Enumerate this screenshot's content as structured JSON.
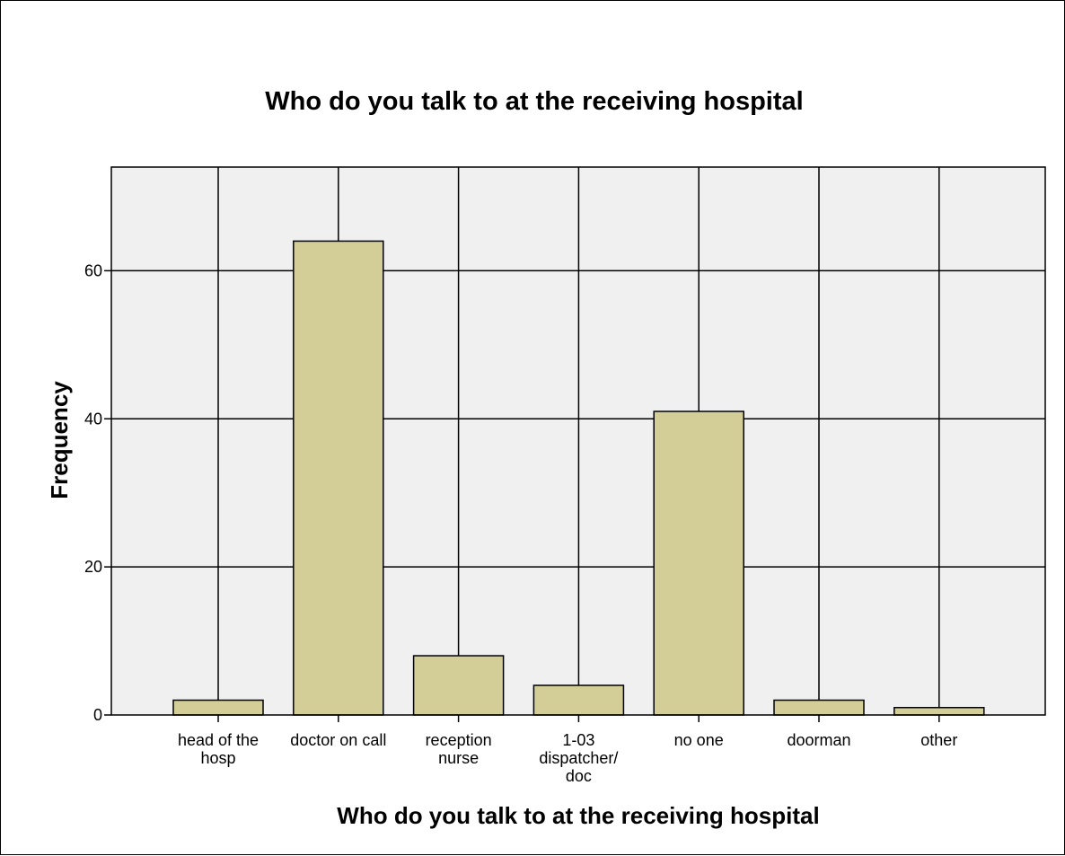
{
  "chart_data": {
    "type": "bar",
    "title": "Who do you talk to at the receiving hospital",
    "xlabel": "Who do you talk to at the receiving hospital",
    "ylabel": "Frequency",
    "categories": [
      "head of the hosp",
      "doctor on call",
      "reception nurse",
      "1-03 dispatcher/ doc",
      "no one",
      "doorman",
      "other"
    ],
    "category_lines": [
      [
        "head of the",
        "hosp"
      ],
      [
        "doctor on call"
      ],
      [
        "reception",
        "nurse"
      ],
      [
        "1-03",
        "dispatcher/",
        "doc"
      ],
      [
        "no one"
      ],
      [
        "doorman"
      ],
      [
        "other"
      ]
    ],
    "values": [
      2,
      64,
      8,
      4,
      41,
      2,
      1
    ],
    "ylim": [
      0,
      74
    ],
    "yticks": [
      0,
      20,
      40,
      60
    ],
    "grid": true,
    "colors": {
      "bar_fill": "#d3ce98",
      "plot_background": "#f0f0f0",
      "grid": "#000000"
    }
  }
}
